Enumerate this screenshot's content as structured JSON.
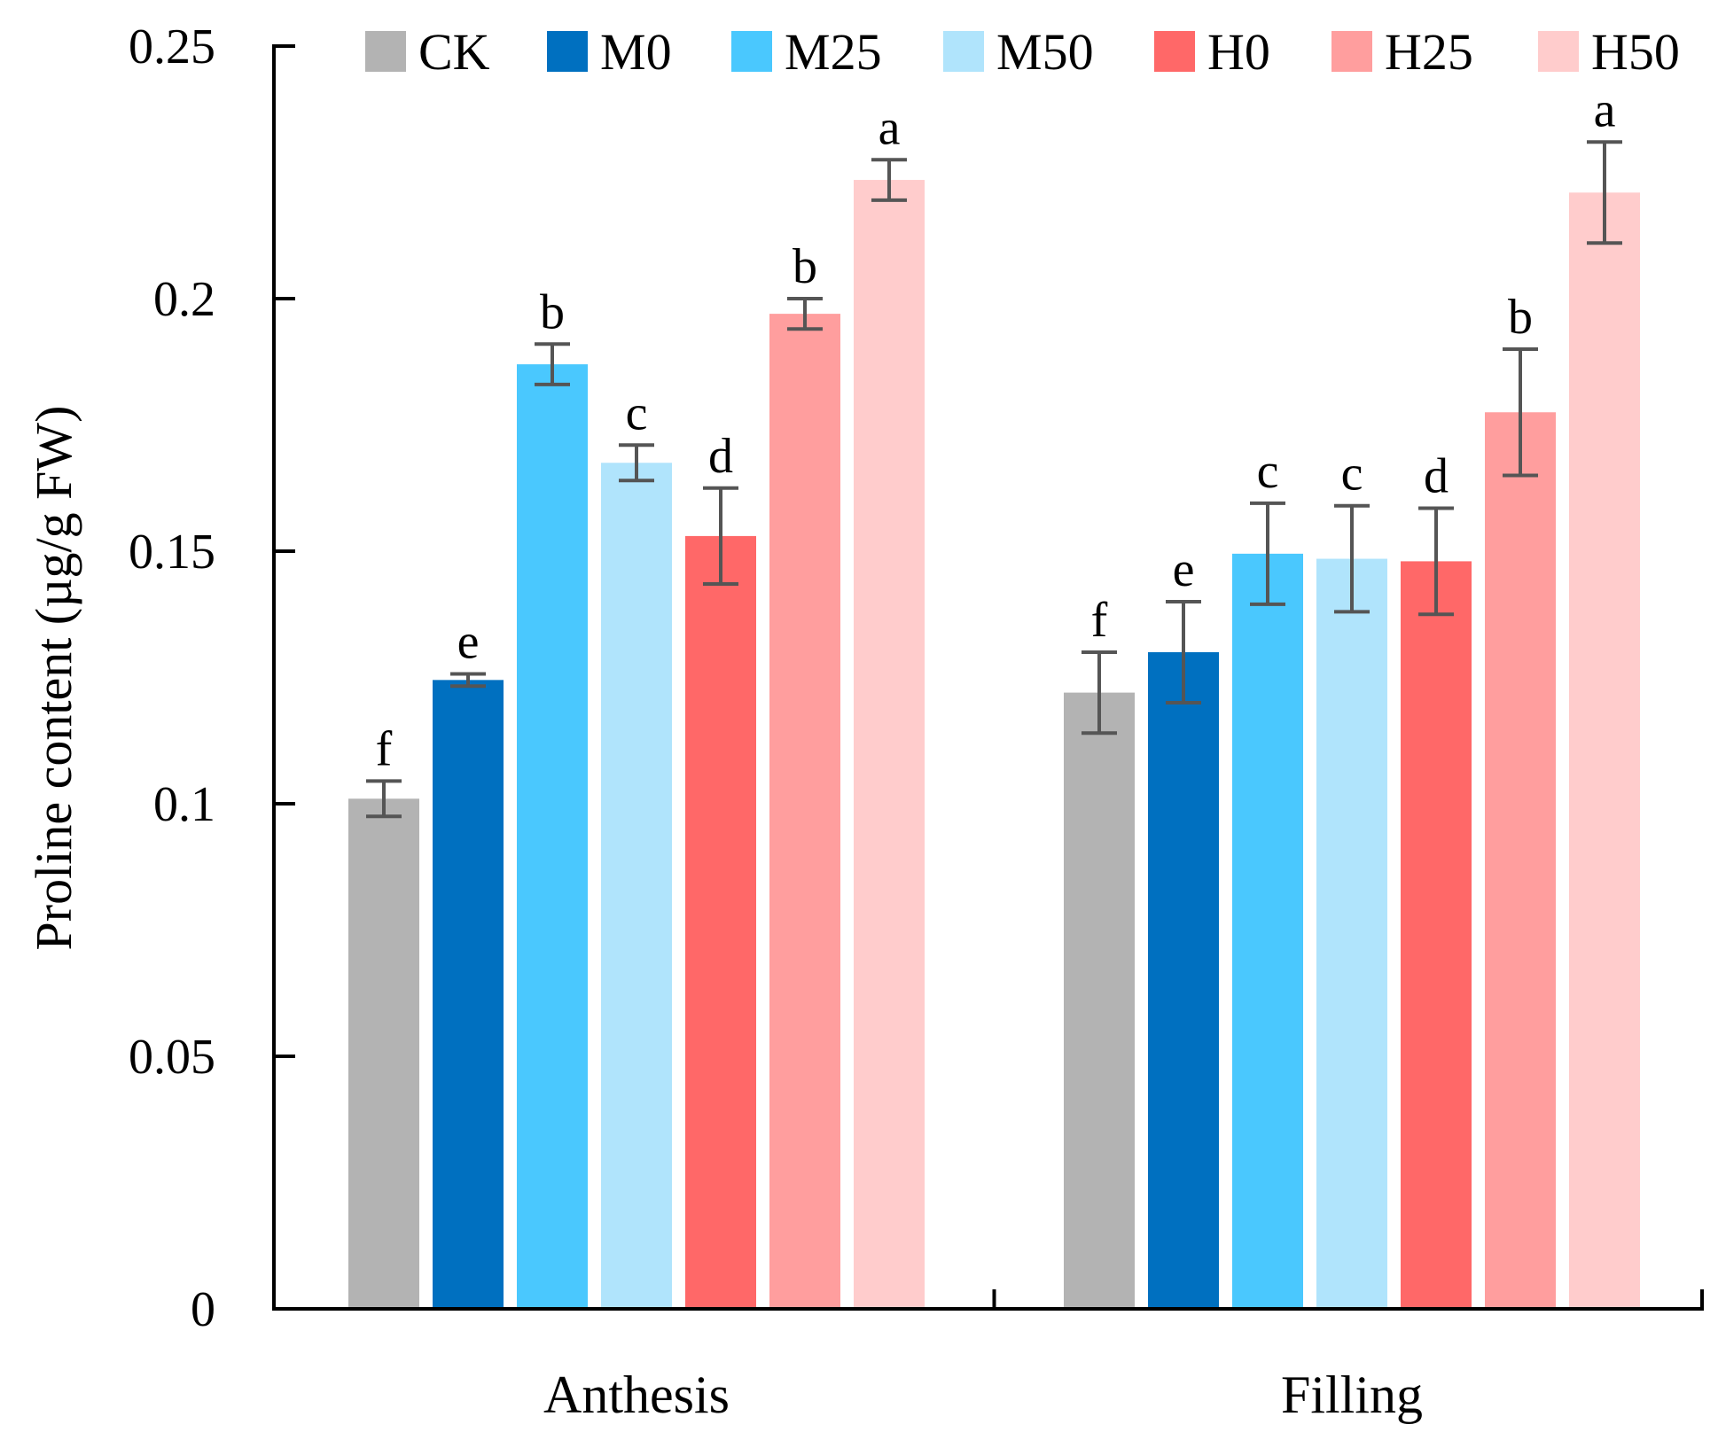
{
  "chart_data": {
    "type": "bar",
    "title": "",
    "xlabel": "",
    "ylabel": "Proline content (µg/g FW)",
    "ylim": [
      0,
      0.25
    ],
    "yticks": [
      0,
      0.05,
      0.1,
      0.15,
      0.2,
      0.25
    ],
    "ytick_labels": [
      "0",
      "0.05",
      "0.1",
      "0.15",
      "0.2",
      "0.25"
    ],
    "categories": [
      "Anthesis",
      "Filling"
    ],
    "legend_position": "top",
    "grid": false,
    "series": [
      {
        "name": "CK",
        "color": "#b3b3b3",
        "values": [
          0.101,
          0.122
        ],
        "errors": [
          0.0035,
          0.008
        ],
        "labels": [
          "f",
          "f"
        ]
      },
      {
        "name": "M0",
        "color": "#0070c0",
        "values": [
          0.1245,
          0.13
        ],
        "errors": [
          0.0012,
          0.01
        ],
        "labels": [
          "e",
          "e"
        ]
      },
      {
        "name": "M25",
        "color": "#4ac8fe",
        "values": [
          0.187,
          0.1495
        ],
        "errors": [
          0.004,
          0.01
        ],
        "labels": [
          "b",
          "c"
        ]
      },
      {
        "name": "M50",
        "color": "#b0e4fc",
        "values": [
          0.1675,
          0.1485
        ],
        "errors": [
          0.0035,
          0.0105
        ],
        "labels": [
          "c",
          "c"
        ]
      },
      {
        "name": "H0",
        "color": "#ff6868",
        "values": [
          0.153,
          0.148
        ],
        "errors": [
          0.0095,
          0.0105
        ],
        "labels": [
          "d",
          "d"
        ]
      },
      {
        "name": "H25",
        "color": "#ff9e9e",
        "values": [
          0.197,
          0.1775
        ],
        "errors": [
          0.003,
          0.0125
        ],
        "labels": [
          "b",
          "b"
        ]
      },
      {
        "name": "H50",
        "color": "#ffcccc",
        "values": [
          0.2235,
          0.221
        ],
        "errors": [
          0.004,
          0.01
        ],
        "labels": [
          "a",
          "a"
        ]
      }
    ],
    "axis_color": "#000000",
    "errorbar_color": "#555555"
  }
}
